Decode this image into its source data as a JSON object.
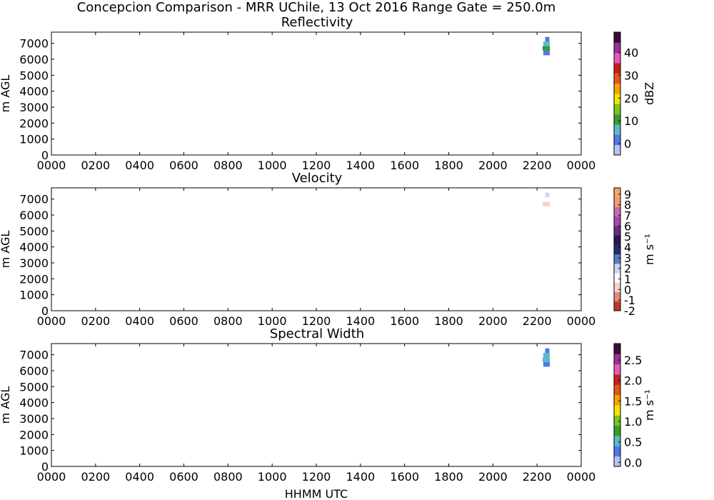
{
  "figure": {
    "suptitle": "Concepcion Comparison - MRR UChile, 13 Oct 2016 Range Gate = 250.0m",
    "xlabel": "HHMM UTC"
  },
  "colors": {
    "background": "#ffffff",
    "axes": "#000000",
    "data_blue": "#4f78e8",
    "data_green": "#4caf50",
    "data_navy": "#1d2f6e",
    "data_lightblue": "#c8d7ee"
  },
  "chart_data": [
    {
      "type": "heatmap",
      "title": "Reflectivity",
      "xlabel": "",
      "ylabel": "m AGL",
      "x_ticks": [
        "0000",
        "0200",
        "0400",
        "0600",
        "0800",
        "1000",
        "1200",
        "1400",
        "1600",
        "1800",
        "2000",
        "2200",
        "0000"
      ],
      "xlim_hours": [
        0,
        24
      ],
      "y_ticks": [
        "0",
        "1000",
        "2000",
        "3000",
        "4000",
        "5000",
        "6000",
        "7000"
      ],
      "ylim": [
        0,
        7700
      ],
      "colorbar": {
        "label": "dBZ",
        "ticks": [
          "0",
          "10",
          "20",
          "30",
          "40"
        ],
        "tick_values": [
          0,
          10,
          20,
          30,
          40
        ],
        "range": [
          -5,
          49
        ],
        "colors": [
          "#b3c6f2",
          "#4f78e8",
          "#5fb8c8",
          "#33a02c",
          "#7fc41c",
          "#f2e400",
          "#f5a300",
          "#e8541a",
          "#c81e1e",
          "#e85ab8",
          "#9b2f9b",
          "#3b0a3b"
        ]
      },
      "echo": {
        "time_start_hhmm": "2215",
        "time_end_hhmm": "2235",
        "height_min_m": 6250,
        "height_max_m": 7400,
        "values_dbz": [
          2,
          10,
          6,
          0
        ]
      }
    },
    {
      "type": "heatmap",
      "title": "Velocity",
      "xlabel": "",
      "ylabel": "m AGL",
      "x_ticks": [
        "0000",
        "0200",
        "0400",
        "0600",
        "0800",
        "1000",
        "1200",
        "1400",
        "1600",
        "1800",
        "2000",
        "2200",
        "0000"
      ],
      "xlim_hours": [
        0,
        24
      ],
      "y_ticks": [
        "0",
        "1000",
        "2000",
        "3000",
        "4000",
        "5000",
        "6000",
        "7000"
      ],
      "ylim": [
        0,
        7700
      ],
      "colorbar": {
        "label": "m s⁻¹",
        "ticks": [
          "-2",
          "-1",
          "0",
          "1",
          "2",
          "3",
          "4",
          "5",
          "6",
          "7",
          "8",
          "9"
        ],
        "tick_values": [
          -2,
          -1,
          0,
          1,
          2,
          3,
          4,
          5,
          6,
          7,
          8,
          9
        ],
        "range": [
          -2,
          9.6
        ],
        "colors": [
          "#c0392b",
          "#e8897a",
          "#f6d2c8",
          "#ffffff",
          "#c8d7ee",
          "#5a7dc0",
          "#1d2f6e",
          "#2a1a50",
          "#6a2a8a",
          "#a04aa8",
          "#c86ab0",
          "#f29a6a",
          "#f4a56a"
        ]
      },
      "echo": {
        "time_start_hhmm": "2215",
        "time_end_hhmm": "2235",
        "height_min_m": 6250,
        "height_max_m": 7400,
        "values_ms": [
          1,
          0.5,
          1.5,
          2
        ]
      }
    },
    {
      "type": "heatmap",
      "title": "Spectral Width",
      "xlabel": "HHMM UTC",
      "ylabel": "m AGL",
      "x_ticks": [
        "0000",
        "0200",
        "0400",
        "0600",
        "0800",
        "1000",
        "1200",
        "1400",
        "1600",
        "1800",
        "2000",
        "2200",
        "0000"
      ],
      "xlim_hours": [
        0,
        24
      ],
      "y_ticks": [
        "0",
        "1000",
        "2000",
        "3000",
        "4000",
        "5000",
        "6000",
        "7000"
      ],
      "ylim": [
        0,
        7700
      ],
      "colorbar": {
        "label": "m s⁻¹",
        "ticks": [
          "0.0",
          "0.5",
          "1.0",
          "1.5",
          "2.0",
          "2.5"
        ],
        "tick_values": [
          0,
          0.5,
          1.0,
          1.5,
          2.0,
          2.5
        ],
        "range": [
          -0.1,
          2.9
        ],
        "colors": [
          "#b3c6f2",
          "#4f78e8",
          "#5fb8c8",
          "#33a02c",
          "#7fc41c",
          "#f2e400",
          "#f5a300",
          "#e8541a",
          "#c81e1e",
          "#e85ab8",
          "#9b2f9b",
          "#3b0a3b"
        ]
      },
      "echo": {
        "time_start_hhmm": "2215",
        "time_end_hhmm": "2235",
        "height_min_m": 6250,
        "height_max_m": 7400,
        "values_ms": [
          0.3,
          0.4,
          0.5,
          0.3
        ]
      }
    }
  ]
}
